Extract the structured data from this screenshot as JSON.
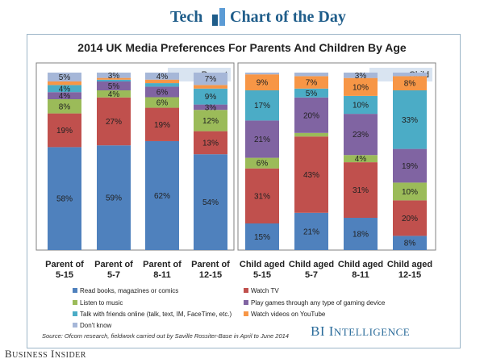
{
  "header": {
    "left_word": "Tech",
    "right_words": "Chart of the Day"
  },
  "chart_data": {
    "type": "bar",
    "stacked": true,
    "title": "2014 UK Media Preferences For Parents And Children By Age",
    "groups": [
      "Parent",
      "Child"
    ],
    "categories": [
      [
        "Parent of",
        "5-15"
      ],
      [
        "Parent of",
        "5-7"
      ],
      [
        "Parent of",
        "8-11"
      ],
      [
        "Parent of",
        "12-15"
      ],
      [
        "Child aged",
        "5-15"
      ],
      [
        "Child aged",
        "5-7"
      ],
      [
        "Child aged",
        "8-11"
      ],
      [
        "Child aged",
        "12-15"
      ]
    ],
    "category_group": [
      0,
      0,
      0,
      0,
      1,
      1,
      1,
      1
    ],
    "series": [
      {
        "name": "Read books, magazines or comics",
        "color": "#4f81bd",
        "values": [
          58,
          59,
          62,
          54,
          15,
          21,
          18,
          8
        ]
      },
      {
        "name": "Watch TV",
        "color": "#c0504d",
        "values": [
          19,
          27,
          19,
          13,
          31,
          43,
          31,
          20
        ]
      },
      {
        "name": "Listen to music",
        "color": "#9bbb59",
        "values": [
          8,
          4,
          6,
          12,
          6,
          2,
          4,
          10
        ]
      },
      {
        "name": "Play games through any type of gaming device",
        "color": "#8064a2",
        "values": [
          4,
          5,
          6,
          3,
          21,
          20,
          23,
          19
        ]
      },
      {
        "name": "Talk with friends online (talk, text, IM, FaceTime, etc.)",
        "color": "#4bacc6",
        "values": [
          4,
          1,
          2,
          9,
          17,
          5,
          10,
          33
        ]
      },
      {
        "name": "Watch videos on YouTube",
        "color": "#f79646",
        "values": [
          2,
          1,
          2,
          2,
          9,
          7,
          10,
          8
        ]
      },
      {
        "name": "Don't know",
        "color": "#a6b7d8",
        "values": [
          5,
          3,
          4,
          7,
          1,
          2,
          3,
          2
        ]
      }
    ],
    "labels": [
      [
        "58%",
        "19%",
        "8%",
        "4%",
        "4%",
        "",
        "5%"
      ],
      [
        "59%",
        "27%",
        "4%",
        "5%",
        "",
        "",
        "3%"
      ],
      [
        "62%",
        "19%",
        "6%",
        "6%",
        "",
        "",
        "4%"
      ],
      [
        "54%",
        "13%",
        "12%",
        "3%",
        "9%",
        "",
        "7%"
      ],
      [
        "15%",
        "31%",
        "6%",
        "21%",
        "17%",
        "9%",
        ""
      ],
      [
        "21%",
        "43%",
        "",
        "20%",
        "5%",
        "7%",
        ""
      ],
      [
        "18%",
        "31%",
        "4%",
        "23%",
        "10%",
        "10%",
        "3%"
      ],
      [
        "8%",
        "20%",
        "10%",
        "19%",
        "33%",
        "8%",
        ""
      ]
    ],
    "ylim": [
      0,
      100
    ],
    "legend_position": "bottom"
  },
  "footer": {
    "source": "Source: Ofcom research, fieldwork carried out by Saville Rossiter-Base in April to June 2014",
    "brand_first": "BI I",
    "brand_rest": "NTELLIGENCE",
    "publisher_b": "B",
    "publisher_usiness": "USINESS",
    "publisher_i": " I",
    "publisher_nsider": "NSIDER"
  }
}
